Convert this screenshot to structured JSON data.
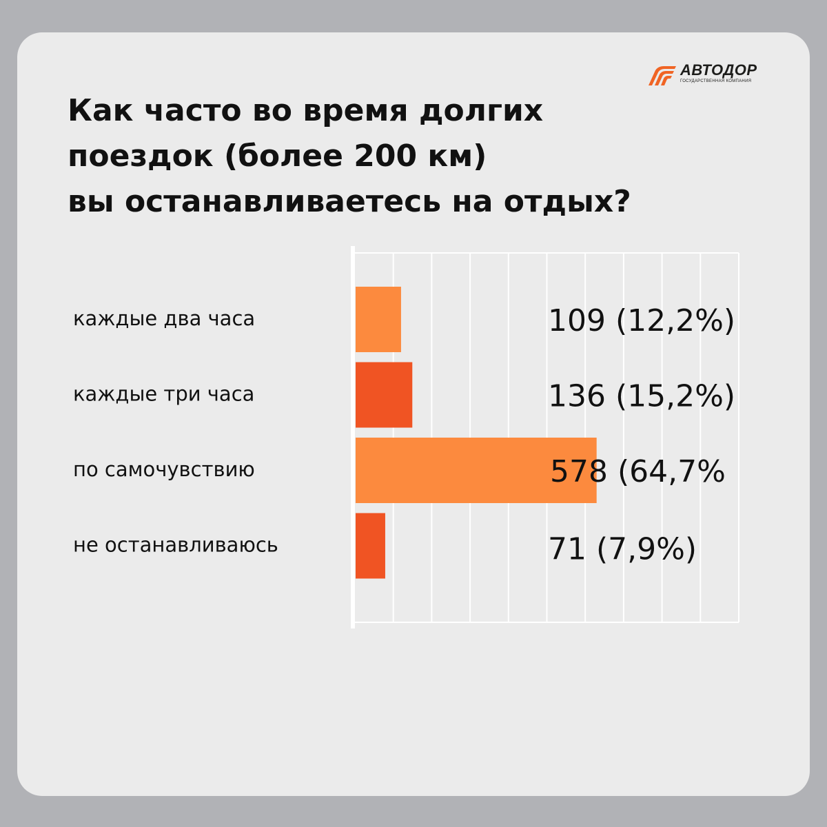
{
  "brand": {
    "name": "АВТОДОР",
    "subtitle": "ГОСУДАРСТВЕННАЯ КОМПАНИЯ",
    "accent": "#f06424"
  },
  "title_lines": [
    "Как часто во время долгих",
    "поездок (более 200 км)",
    "вы останавливаетесь на отдых?"
  ],
  "chart_data": {
    "type": "bar",
    "orientation": "horizontal",
    "title": "Как часто во время долгих поездок (более 200 км) вы останавливаетесь на отдых?",
    "categories": [
      "каждые два часа",
      "каждые три часа",
      "по самочувствию",
      "не останавливаюсь"
    ],
    "values": [
      109,
      136,
      578,
      71
    ],
    "percent_labels": [
      "12,2%",
      "15,2%",
      "64,7%",
      "7,9%"
    ],
    "data_labels": [
      "109 (12,2%)",
      "136 (15,2%)",
      "578 (64,7%",
      "71 (7,9%)"
    ],
    "colors": [
      "#fc8a3e",
      "#f05423",
      "#fc8a3e",
      "#f05423"
    ],
    "xlim": [
      0,
      800
    ],
    "grid": true,
    "legend": "none"
  }
}
